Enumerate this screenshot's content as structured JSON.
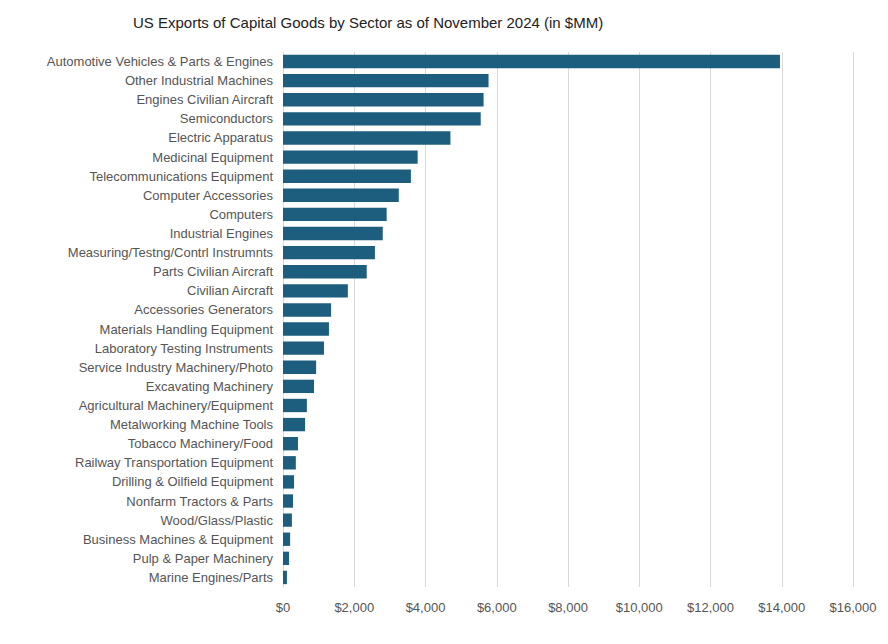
{
  "chart_data": {
    "type": "bar",
    "orientation": "horizontal",
    "title": "US Exports of Capital Goods by Sector as of November 2024 (in $MM)",
    "categories": [
      "Automotive Vehicles & Parts & Engines",
      "Other Industrial Machines",
      "Engines Civilian Aircraft",
      "Semiconductors",
      "Electric Apparatus",
      "Medicinal Equipment",
      "Telecommunications Equipment",
      "Computer Accessories",
      "Computers",
      "Industrial Engines",
      "Measuring/Testng/Contrl Instrumnts",
      "Parts Civilian Aircraft",
      "Civilian Aircraft",
      "Accessories Generators",
      "Materials Handling Equipment",
      "Laboratory Testing Instruments",
      "Service Industry Machinery/Photo",
      "Excavating Machinery",
      "Agricultural Machinery/Equipment",
      "Metalworking Machine Tools",
      "Tobacco Machinery/Food",
      "Railway Transportation Equipment",
      "Drilling & Oilfield Equipment",
      "Nonfarm Tractors & Parts",
      "Wood/Glass/Plastic",
      "Business Machines & Equipment",
      "Pulp & Paper Machinery",
      "Marine Engines/Parts"
    ],
    "values": [
      13950,
      5770,
      5630,
      5550,
      4700,
      3780,
      3590,
      3250,
      2910,
      2800,
      2580,
      2350,
      1820,
      1350,
      1290,
      1150,
      930,
      870,
      670,
      620,
      420,
      360,
      310,
      280,
      250,
      200,
      170,
      110
    ],
    "color": "#1d5e7e",
    "xlim": [
      0,
      16000
    ],
    "xticks": [
      {
        "value": 0,
        "label": "$0"
      },
      {
        "value": 2000,
        "label": "$2,000"
      },
      {
        "value": 4000,
        "label": "$4,000"
      },
      {
        "value": 6000,
        "label": "$6,000"
      },
      {
        "value": 8000,
        "label": "$8,000"
      },
      {
        "value": 10000,
        "label": "$10,000"
      },
      {
        "value": 12000,
        "label": "$12,000"
      },
      {
        "value": 14000,
        "label": "$14,000"
      },
      {
        "value": 16000,
        "label": "$16,000"
      }
    ],
    "grid": true
  }
}
